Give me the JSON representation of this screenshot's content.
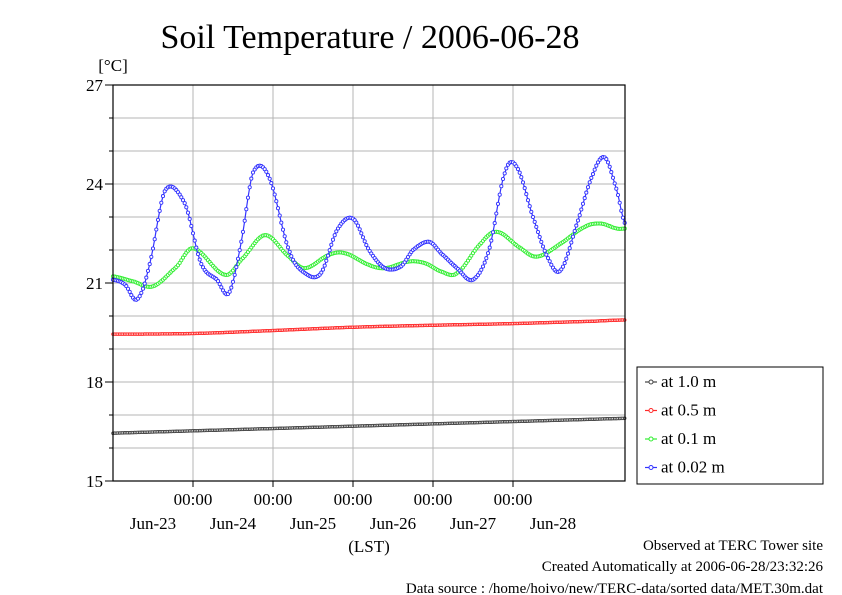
{
  "chart_data": {
    "type": "line",
    "title": "Soil Temperature / 2006-06-28",
    "ylabel": "[°C]",
    "xlabel": "(LST)",
    "ylim": [
      15,
      27
    ],
    "yticks": [
      15,
      18,
      21,
      24,
      27
    ],
    "xlim_days": [
      0,
      6.4
    ],
    "x_tick_label": "00:00",
    "x_ticks_days": [
      1,
      2,
      3,
      4,
      5
    ],
    "date_labels": [
      "Jun-23",
      "Jun-24",
      "Jun-25",
      "Jun-26",
      "Jun-27",
      "Jun-28"
    ],
    "date_label_positions_days": [
      0.5,
      1.5,
      2.5,
      3.5,
      4.5,
      5.5
    ],
    "grid": true,
    "legend_placement": "right",
    "series": [
      {
        "name": "at 1.0 m",
        "color": "#444444",
        "x": [
          0,
          6.4
        ],
        "values": [
          16.45,
          16.9
        ]
      },
      {
        "name": "at 0.5 m",
        "color": "#ff2a2a",
        "x": [
          0,
          1,
          2,
          3,
          4,
          5,
          6,
          6.4
        ],
        "values": [
          19.45,
          19.47,
          19.56,
          19.66,
          19.72,
          19.77,
          19.84,
          19.88
        ]
      },
      {
        "name": "at 0.1 m",
        "color": "#33ee33",
        "x": [
          0,
          0.25,
          0.5,
          0.8,
          1.0,
          1.4,
          1.6,
          1.9,
          2.2,
          2.4,
          2.7,
          2.9,
          3.2,
          3.4,
          3.7,
          3.9,
          4.1,
          4.3,
          4.6,
          4.8,
          5.1,
          5.3,
          5.6,
          5.9,
          6.1,
          6.3,
          6.4
        ],
        "values": [
          21.2,
          21.05,
          20.9,
          21.5,
          22.05,
          21.25,
          21.7,
          22.45,
          21.8,
          21.45,
          21.85,
          21.9,
          21.55,
          21.45,
          21.65,
          21.6,
          21.35,
          21.3,
          22.2,
          22.55,
          22.05,
          21.8,
          22.2,
          22.7,
          22.8,
          22.65,
          22.65
        ]
      },
      {
        "name": "at 0.02 m",
        "color": "#3333ff",
        "x": [
          0,
          0.15,
          0.3,
          0.45,
          0.65,
          0.9,
          1.1,
          1.3,
          1.45,
          1.6,
          1.75,
          1.95,
          2.2,
          2.4,
          2.6,
          2.8,
          3.0,
          3.2,
          3.4,
          3.6,
          3.75,
          3.95,
          4.1,
          4.3,
          4.5,
          4.7,
          4.9,
          5.05,
          5.25,
          5.45,
          5.6,
          5.8,
          6.0,
          6.15,
          6.3,
          6.4
        ],
        "values": [
          21.1,
          20.95,
          20.5,
          21.5,
          23.8,
          23.4,
          21.6,
          21.1,
          20.7,
          22.2,
          24.35,
          24.2,
          22.0,
          21.3,
          21.3,
          22.6,
          22.95,
          22.0,
          21.45,
          21.5,
          22.0,
          22.25,
          21.9,
          21.45,
          21.1,
          22.0,
          24.35,
          24.5,
          23.0,
          21.7,
          21.4,
          22.8,
          24.3,
          24.8,
          23.8,
          22.8
        ]
      }
    ]
  },
  "footer": {
    "observed": "Observed at TERC Tower site",
    "created": "Created Automatically at 2006-06-28/23:32:26",
    "source": "Data source : /home/hoivo/new/TERC-data/sorted data/MET.30m.dat"
  }
}
